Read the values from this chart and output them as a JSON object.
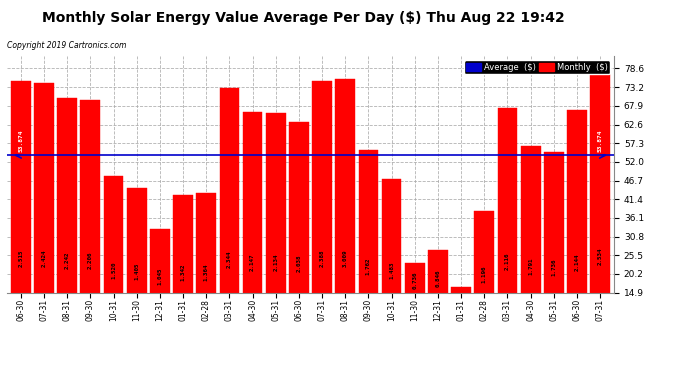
{
  "title": "Monthly Solar Energy Value Average Per Day ($) Thu Aug 22 19:42",
  "copyright": "Copyright 2019 Cartronics.com",
  "categories": [
    "06-30",
    "07-31",
    "08-31",
    "09-30",
    "10-31",
    "11-30",
    "12-31",
    "01-31",
    "02-28",
    "03-31",
    "04-30",
    "05-31",
    "06-30",
    "07-31",
    "08-31",
    "09-30",
    "10-31",
    "11-30",
    "12-31",
    "01-31",
    "02-28",
    "03-31",
    "04-30",
    "05-31",
    "06-30",
    "07-31"
  ],
  "values": [
    2.515,
    2.424,
    2.242,
    2.206,
    1.52,
    1.405,
    1.045,
    1.342,
    1.364,
    2.344,
    2.147,
    2.134,
    2.038,
    2.388,
    3.009,
    1.762,
    1.483,
    0.736,
    0.846,
    0.52,
    1.196,
    2.116,
    1.791,
    1.736,
    2.144,
    2.534
  ],
  "bar_heights_display": [
    75.0,
    74.3,
    70.2,
    69.7,
    48.0,
    44.5,
    33.0,
    42.5,
    43.2,
    73.0,
    66.2,
    65.8,
    63.2,
    74.9,
    75.5,
    55.5,
    47.2,
    23.4,
    26.9,
    16.5,
    38.0,
    67.2,
    56.6,
    54.8,
    66.7,
    79.2
  ],
  "average_line": 53.874,
  "average_label": "53.874",
  "bar_color": "#FF0000",
  "average_line_color": "#0000CC",
  "background_color": "#FFFFFF",
  "grid_color": "#AAAAAA",
  "title_fontsize": 10,
  "ylim_min": 14.9,
  "ylim_max": 82.0,
  "yticks": [
    14.9,
    20.2,
    25.5,
    30.8,
    36.1,
    41.4,
    46.7,
    52.0,
    57.3,
    62.6,
    67.9,
    73.2,
    78.6
  ],
  "legend_average_label": "Average  ($)",
  "legend_monthly_label": "Monthly  ($)"
}
